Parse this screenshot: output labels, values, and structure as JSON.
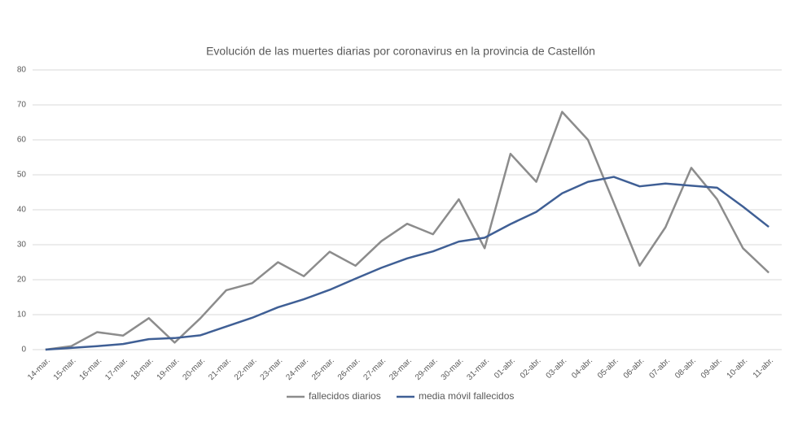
{
  "chart_data": {
    "type": "line",
    "title": "Evolución de las muertes diarias por coronavirus en la provincia de Castellón",
    "categories": [
      "14-mar.",
      "15-mar.",
      "16-mar.",
      "17-mar.",
      "18-mar.",
      "19-mar.",
      "20-mar.",
      "21-mar.",
      "22-mar.",
      "23-mar.",
      "24-mar.",
      "25-mar.",
      "26-mar.",
      "27-mar.",
      "28-mar.",
      "29-mar.",
      "30-mar.",
      "31-mar.",
      "01-abr.",
      "02-abr.",
      "03-abr.",
      "04-abr.",
      "05-abr.",
      "06-abr.",
      "07-abr.",
      "08-abr.",
      "09-abr.",
      "10-abr.",
      "11-abr."
    ],
    "series": [
      {
        "name": "fallecidos diarios",
        "color": "#8c8c8c",
        "values": [
          0,
          1,
          5,
          4,
          9,
          2,
          9,
          17,
          19,
          25,
          21,
          28,
          24,
          31,
          36,
          33,
          43,
          29,
          56,
          48,
          68,
          60,
          42,
          24,
          35,
          52,
          43,
          29,
          22
        ]
      },
      {
        "name": "media móvil fallecidos",
        "color": "#3f5f95",
        "values": [
          0,
          0.5,
          1,
          1.6,
          3,
          3.3,
          4.1,
          6.6,
          9.1,
          12.1,
          14.4,
          17.1,
          20.3,
          23.4,
          26.1,
          28.1,
          30.9,
          32,
          35.9,
          39.4,
          44.7,
          48,
          49.4,
          46.7,
          47.5,
          46.9,
          46.3,
          40.9,
          35.1
        ]
      }
    ],
    "ylim": [
      0,
      80
    ],
    "yticks": [
      0,
      10,
      20,
      30,
      40,
      50,
      60,
      70,
      80
    ],
    "grid": true,
    "legend": "bottom"
  }
}
